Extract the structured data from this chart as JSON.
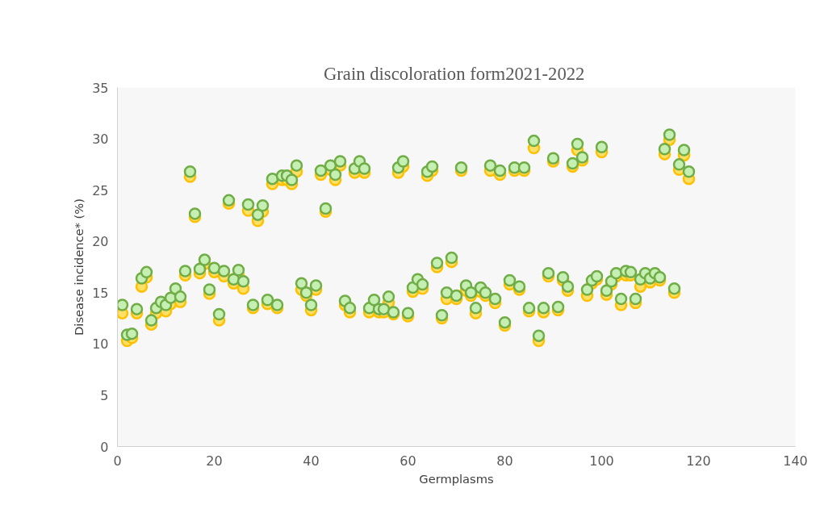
{
  "chart_data": {
    "type": "scatter",
    "title": "Grain discoloration  form2021-2022",
    "xlabel": "Germplasms",
    "ylabel": "Disease incidence* (%)",
    "x": [
      1,
      2,
      3,
      4,
      5,
      6,
      7,
      8,
      9,
      10,
      11,
      12,
      13,
      14,
      15,
      16,
      17,
      18,
      19,
      20,
      21,
      22,
      23,
      24,
      25,
      26,
      27,
      28,
      29,
      30,
      31,
      32,
      33,
      34,
      35,
      36,
      37,
      38,
      39,
      40,
      41,
      42,
      43,
      44,
      45,
      46,
      47,
      48,
      49,
      50,
      51,
      52,
      53,
      54,
      55,
      56,
      57,
      58,
      59,
      60,
      61,
      62,
      63,
      64,
      65,
      66,
      67,
      68,
      69,
      70,
      71,
      72,
      73,
      74,
      75,
      76,
      77,
      78,
      79,
      80,
      81,
      82,
      83,
      84,
      85,
      86,
      87,
      88,
      89,
      90,
      91,
      92,
      93,
      94,
      95,
      96,
      97,
      98,
      99,
      100,
      101,
      102,
      103,
      104,
      105,
      106,
      107,
      108,
      109,
      110,
      111,
      112,
      113,
      114,
      115,
      116,
      117,
      118
    ],
    "series": [
      {
        "color": "#ffc000",
        "values": [
          13.0,
          10.3,
          10.6,
          13.0,
          15.6,
          16.5,
          11.9,
          13.0,
          null,
          13.2,
          13.9,
          null,
          14.1,
          16.7,
          26.3,
          22.4,
          16.9,
          17.8,
          14.9,
          17.0,
          12.3,
          16.6,
          23.7,
          15.9,
          16.7,
          15.4,
          23.0,
          13.5,
          22.0,
          22.9,
          13.9,
          25.6,
          13.5,
          26.0,
          26.0,
          25.6,
          26.8,
          15.3,
          14.7,
          13.3,
          15.3,
          26.5,
          22.9,
          27.0,
          26.0,
          27.4,
          13.8,
          13.1,
          26.7,
          null,
          26.7,
          13.1,
          null,
          13.1,
          13.1,
          14.0,
          12.9,
          26.7,
          27.3,
          12.7,
          15.1,
          null,
          15.4,
          26.4,
          26.9,
          17.5,
          12.5,
          14.4,
          18.0,
          14.4,
          26.9,
          15.2,
          14.7,
          13.0,
          15.1,
          14.7,
          26.9,
          14.0,
          26.5,
          11.8,
          15.8,
          26.9,
          15.3,
          26.9,
          13.2,
          29.1,
          10.3,
          13.1,
          16.6,
          27.8,
          13.3,
          16.2,
          15.2,
          27.3,
          28.9,
          27.9,
          14.7,
          15.9,
          16.3,
          28.7,
          14.8,
          15.8,
          16.6,
          13.8,
          16.7,
          16.7,
          14.0,
          15.6,
          null,
          16.0,
          null,
          16.2,
          28.5,
          29.9,
          15.0,
          27.0,
          28.4,
          26.1
        ]
      },
      {
        "color": "#70ad47",
        "values": [
          13.8,
          10.9,
          11.0,
          13.4,
          16.4,
          17.0,
          12.3,
          13.5,
          14.1,
          13.8,
          14.5,
          15.4,
          14.6,
          17.1,
          26.8,
          22.7,
          17.3,
          18.2,
          15.3,
          17.4,
          12.9,
          17.1,
          24.0,
          16.3,
          17.2,
          16.1,
          23.6,
          13.8,
          22.6,
          23.5,
          14.3,
          26.1,
          13.8,
          26.4,
          26.4,
          26.0,
          27.4,
          15.9,
          15.0,
          13.8,
          15.7,
          26.9,
          23.2,
          27.4,
          26.5,
          27.8,
          14.2,
          13.5,
          27.1,
          27.8,
          27.1,
          13.5,
          14.3,
          13.4,
          13.4,
          14.6,
          13.1,
          27.2,
          27.8,
          13.0,
          15.5,
          16.3,
          15.8,
          26.8,
          27.3,
          17.9,
          12.8,
          15.0,
          18.4,
          14.7,
          27.2,
          15.7,
          15.0,
          13.5,
          15.5,
          15.0,
          27.4,
          14.4,
          26.9,
          12.1,
          16.2,
          27.2,
          15.6,
          27.2,
          13.5,
          29.8,
          10.8,
          13.5,
          16.9,
          28.1,
          13.6,
          16.5,
          15.6,
          27.6,
          29.5,
          28.2,
          15.3,
          16.2,
          16.6,
          29.2,
          15.2,
          16.1,
          16.9,
          14.4,
          17.1,
          17.0,
          14.4,
          16.3,
          16.9,
          16.4,
          16.9,
          16.5,
          29.0,
          30.4,
          15.4,
          27.5,
          28.9,
          26.8
        ]
      }
    ],
    "xlim": [
      0,
      140
    ],
    "xticks": [
      0,
      20,
      40,
      60,
      80,
      100,
      120,
      140
    ],
    "ylim": [
      0,
      35
    ],
    "yticks": [
      0,
      5,
      10,
      15,
      20,
      25,
      30,
      35
    ],
    "grid": false,
    "marker": "circle"
  }
}
